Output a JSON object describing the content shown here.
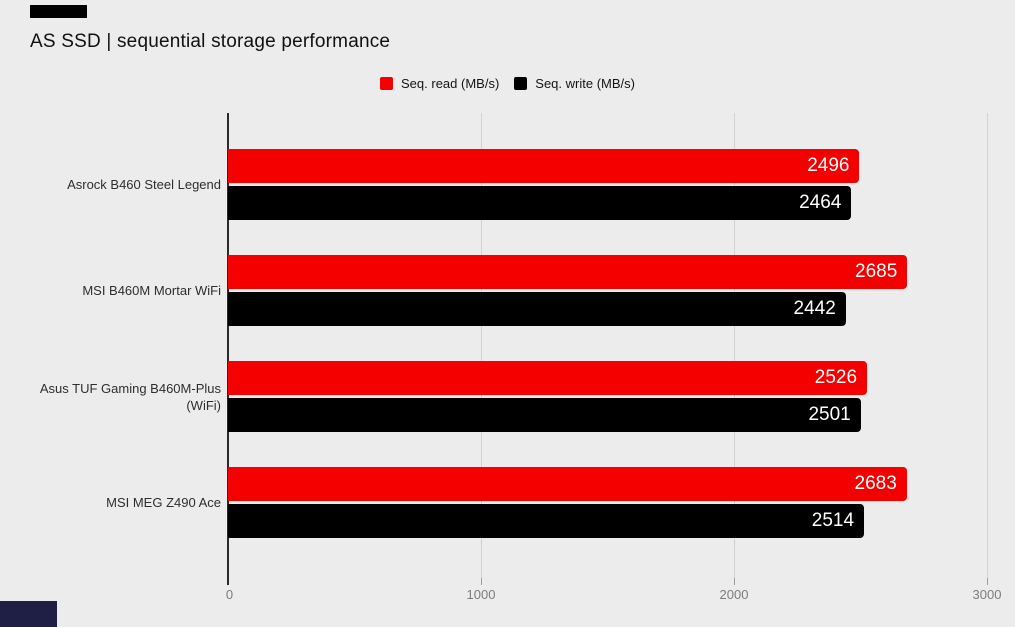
{
  "page": {
    "background": "#ececec"
  },
  "title": "AS SSD | sequential storage performance",
  "chart_data": {
    "type": "bar",
    "orientation": "horizontal",
    "title": "AS SSD | sequential storage performance",
    "categories": [
      "Asrock B460 Steel Legend",
      "MSI B460M Mortar WiFi",
      "Asus TUF Gaming B460M-Plus (WiFi)",
      "MSI MEG Z490 Ace"
    ],
    "series": [
      {
        "name": "Seq. read (MB/s)",
        "color": "#f40000",
        "values": [
          2496,
          2685,
          2526,
          2683
        ]
      },
      {
        "name": "Seq. write (MB/s)",
        "color": "#000000",
        "values": [
          2464,
          2442,
          2501,
          2514
        ]
      }
    ],
    "xlim": [
      0,
      3000
    ],
    "xticks": [
      0,
      1000,
      2000,
      3000
    ],
    "grid": true,
    "legend_position": "top",
    "value_labels": "inside-end, white"
  },
  "decorations": {
    "top_left": "#000000",
    "bottom_left": "#1f1f46"
  }
}
